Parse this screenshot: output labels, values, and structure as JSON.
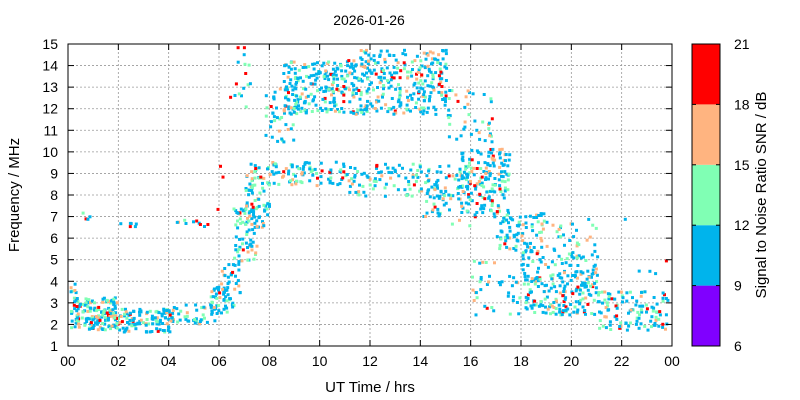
{
  "chart_data": {
    "type": "scatter",
    "title": "2026-01-26",
    "xlabel": "UT Time / hrs",
    "ylabel": "Frequency / MHz",
    "xlim": [
      0,
      24
    ],
    "ylim": [
      1,
      15
    ],
    "x_ticks": [
      "00",
      "02",
      "04",
      "06",
      "08",
      "10",
      "12",
      "14",
      "16",
      "18",
      "20",
      "22",
      "00"
    ],
    "y_ticks": [
      "1",
      "2",
      "3",
      "4",
      "5",
      "6",
      "7",
      "8",
      "9",
      "10",
      "11",
      "12",
      "13",
      "14",
      "15"
    ],
    "grid": true,
    "colorbar": {
      "label": "Signal to Noise Ratio SNR / dB",
      "ticks": [
        "6",
        "9",
        "12",
        "15",
        "18",
        "21"
      ],
      "bands": [
        {
          "from": 6,
          "to": 9,
          "color": "#8000ff"
        },
        {
          "from": 9,
          "to": 12,
          "color": "#00b4ec"
        },
        {
          "from": 12,
          "to": 15,
          "color": "#80ffb4"
        },
        {
          "from": 15,
          "to": 18,
          "color": "#ffb480"
        },
        {
          "from": 18,
          "to": 21,
          "color": "#ff0000"
        }
      ]
    },
    "clusters": [
      {
        "x": [
          0.0,
          2.0
        ],
        "y": [
          1.8,
          3.3
        ],
        "n": 170
      },
      {
        "x": [
          2.0,
          4.0
        ],
        "y": [
          1.7,
          2.8
        ],
        "n": 90
      },
      {
        "x": [
          0.0,
          0.3
        ],
        "y": [
          3.5,
          4.0
        ],
        "n": 6
      },
      {
        "x": [
          0.5,
          0.9
        ],
        "y": [
          6.8,
          7.8
        ],
        "n": 4
      },
      {
        "x": [
          1.8,
          2.7
        ],
        "y": [
          6.6,
          6.8
        ],
        "n": 6
      },
      {
        "x": [
          3.0,
          4.2
        ],
        "y": [
          2.0,
          2.8
        ],
        "n": 14
      },
      {
        "x": [
          4.0,
          5.8
        ],
        "y": [
          2.0,
          3.0
        ],
        "n": 40
      },
      {
        "x": [
          4.0,
          5.5
        ],
        "y": [
          6.6,
          6.9
        ],
        "n": 8
      },
      {
        "x": [
          5.6,
          6.6
        ],
        "y": [
          2.5,
          3.8
        ],
        "n": 50
      },
      {
        "x": [
          6.0,
          6.8
        ],
        "y": [
          3.5,
          5.5
        ],
        "n": 30
      },
      {
        "x": [
          6.5,
          7.5
        ],
        "y": [
          5.0,
          7.5
        ],
        "n": 60
      },
      {
        "x": [
          7.0,
          8.0
        ],
        "y": [
          6.5,
          9.5
        ],
        "n": 80
      },
      {
        "x": [
          6.5,
          7.3
        ],
        "y": [
          12.0,
          14.9
        ],
        "n": 12
      },
      {
        "x": [
          7.8,
          9.0
        ],
        "y": [
          10.5,
          13.0
        ],
        "n": 45
      },
      {
        "x": [
          8.5,
          11.5
        ],
        "y": [
          11.8,
          14.3
        ],
        "n": 220
      },
      {
        "x": [
          11.5,
          15.0
        ],
        "y": [
          11.8,
          14.8
        ],
        "n": 260
      },
      {
        "x": [
          15.0,
          16.8
        ],
        "y": [
          10.5,
          13.0
        ],
        "n": 40
      },
      {
        "x": [
          8.0,
          11.0
        ],
        "y": [
          8.5,
          9.6
        ],
        "n": 80
      },
      {
        "x": [
          11.0,
          16.0
        ],
        "y": [
          8.0,
          9.5
        ],
        "n": 130
      },
      {
        "x": [
          14.0,
          16.0
        ],
        "y": [
          6.5,
          8.5
        ],
        "n": 40
      },
      {
        "x": [
          15.5,
          17.5
        ],
        "y": [
          7.0,
          10.2
        ],
        "n": 150
      },
      {
        "x": [
          17.0,
          19.0
        ],
        "y": [
          5.5,
          7.3
        ],
        "n": 80
      },
      {
        "x": [
          16.0,
          18.0
        ],
        "y": [
          2.5,
          5.0
        ],
        "n": 40
      },
      {
        "x": [
          18.0,
          21.0
        ],
        "y": [
          2.5,
          5.5
        ],
        "n": 220
      },
      {
        "x": [
          19.0,
          21.0
        ],
        "y": [
          5.5,
          7.0
        ],
        "n": 25
      },
      {
        "x": [
          21.0,
          24.0
        ],
        "y": [
          1.8,
          3.6
        ],
        "n": 120
      },
      {
        "x": [
          22.0,
          24.0
        ],
        "y": [
          4.0,
          7.0
        ],
        "n": 6
      }
    ],
    "red_points": [
      [
        6.7,
        14.9
      ],
      [
        6.95,
        14.9
      ],
      [
        7.0,
        13.7
      ],
      [
        6.4,
        12.6
      ],
      [
        6.0,
        9.4
      ],
      [
        6.1,
        8.9
      ],
      [
        5.5,
        6.7
      ],
      [
        5.2,
        6.7
      ],
      [
        5.9,
        7.4
      ],
      [
        4.0,
        2.5
      ],
      [
        1.5,
        2.6
      ],
      [
        0.3,
        2.9
      ],
      [
        7.3,
        7.5
      ],
      [
        7.4,
        9.3
      ],
      [
        7.6,
        8.9
      ],
      [
        10.9,
        13.1
      ],
      [
        10.9,
        12.7
      ],
      [
        10.9,
        12.4
      ],
      [
        11.1,
        14.3
      ],
      [
        12.9,
        13.5
      ],
      [
        13.3,
        14.2
      ],
      [
        14.7,
        13.6
      ],
      [
        14.7,
        13.2
      ],
      [
        14.8,
        13.1
      ],
      [
        16.0,
        9.7
      ],
      [
        16.2,
        9.3
      ],
      [
        16.4,
        8.9
      ],
      [
        16.5,
        7.9
      ],
      [
        16.8,
        7.8
      ],
      [
        16.1,
        8.5
      ],
      [
        16.8,
        11.6
      ],
      [
        20.0,
        3.5
      ],
      [
        20.2,
        3.8
      ],
      [
        19.6,
        3.4
      ],
      [
        20.6,
        3.0
      ],
      [
        2.1,
        2.2
      ],
      [
        17.0,
        7.3
      ],
      [
        16.3,
        8.1
      ]
    ],
    "seed": 20260126
  }
}
